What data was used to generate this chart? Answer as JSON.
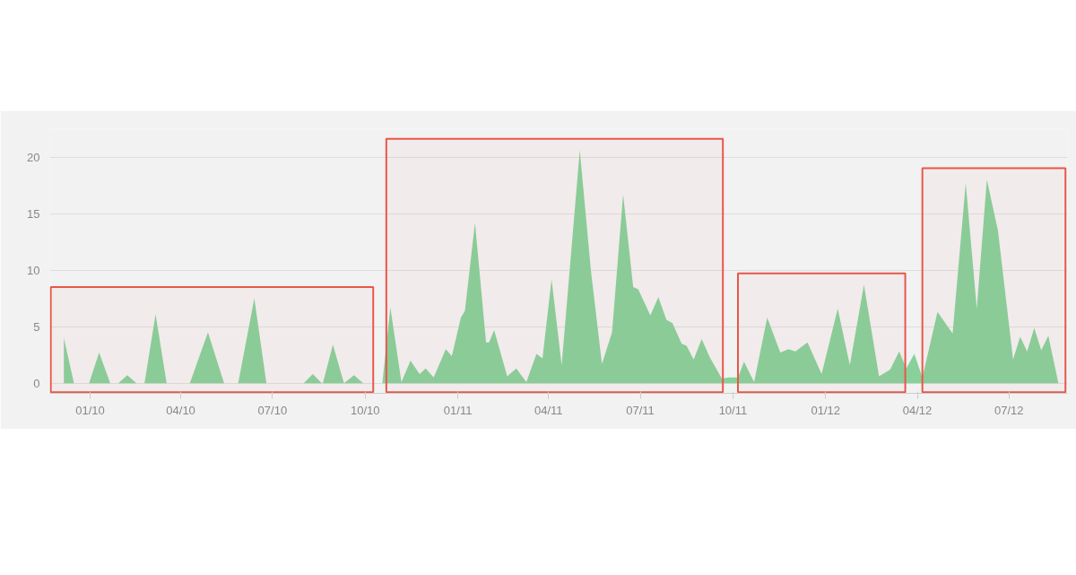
{
  "chart_data": {
    "type": "area",
    "x": [
      "2009-12-06",
      "2009-12-16",
      "2009-12-31",
      "2010-01-10",
      "2010-01-21",
      "2010-01-29",
      "2010-02-07",
      "2010-02-16",
      "2010-02-24",
      "2010-03-07",
      "2010-03-18",
      "2010-04-10",
      "2010-04-28",
      "2010-05-14",
      "2010-05-28",
      "2010-06-13",
      "2010-06-25",
      "2010-08-01",
      "2010-08-10",
      "2010-08-19",
      "2010-08-20",
      "2010-08-30",
      "2010-09-10",
      "2010-09-20",
      "2010-09-29",
      "2010-10-18",
      "2010-10-26",
      "2010-11-06",
      "2010-11-15",
      "2010-11-24",
      "2010-11-30",
      "2010-12-08",
      "2010-12-20",
      "2010-12-26",
      "2011-01-04",
      "2011-01-08",
      "2011-01-18",
      "2011-01-29",
      "2011-02-01",
      "2011-02-06",
      "2011-02-19",
      "2011-02-28",
      "2011-03-10",
      "2011-03-20",
      "2011-03-26",
      "2011-04-04",
      "2011-04-14",
      "2011-05-02",
      "2011-05-13",
      "2011-05-24",
      "2011-06-03",
      "2011-06-14",
      "2011-06-24",
      "2011-06-29",
      "2011-07-11",
      "2011-07-19",
      "2011-07-27",
      "2011-08-02",
      "2011-08-11",
      "2011-08-16",
      "2011-08-23",
      "2011-08-31",
      "2011-09-08",
      "2011-09-20",
      "2011-09-27",
      "2011-10-06",
      "2011-10-12",
      "2011-10-22",
      "2011-11-04",
      "2011-11-17",
      "2011-11-25",
      "2011-12-02",
      "2011-12-14",
      "2011-12-28",
      "2012-01-13",
      "2012-01-25",
      "2012-02-08",
      "2012-02-23",
      "2012-03-05",
      "2012-03-14",
      "2012-03-21",
      "2012-03-29",
      "2012-04-06",
      "2012-04-21",
      "2012-05-06",
      "2012-05-19",
      "2012-05-30",
      "2012-06-09",
      "2012-06-20",
      "2012-07-05",
      "2012-07-12",
      "2012-07-19",
      "2012-07-26",
      "2012-08-02",
      "2012-08-09",
      "2012-08-19"
    ],
    "series": [
      {
        "color": "#88d19b",
        "values": [
          4.0,
          0,
          0,
          2.7,
          0,
          0,
          0.7,
          0,
          0,
          6.1,
          0,
          0,
          4.5,
          0,
          0,
          7.5,
          0,
          0,
          0.8,
          0,
          0,
          3.4,
          0,
          0.7,
          0,
          0,
          6.7,
          0.1,
          2.0,
          0.8,
          1.3,
          0.5,
          3.0,
          2.4,
          5.8,
          6.4,
          14.2,
          3.6,
          3.6,
          4.7,
          0.6,
          1.3,
          0.1,
          2.6,
          2.2,
          9.2,
          1.6,
          20.6,
          10,
          1.7,
          4.5,
          16.7,
          8.5,
          8.3,
          6.0,
          7.6,
          5.6,
          5.3,
          3.5,
          3.3,
          2.1,
          3.9,
          2.3,
          0.4,
          0.5,
          0.5,
          1.9,
          0.1,
          5.8,
          2.7,
          3.0,
          2.8,
          3.6,
          0.8,
          6.6,
          1.6,
          8.7,
          0.6,
          1.2,
          2.8,
          1.3,
          2.6,
          0.5,
          6.3,
          4.4,
          17.7,
          6.6,
          18.0,
          13.5,
          2.1,
          4.1,
          2.8,
          4.9,
          2.9,
          4.2,
          0
        ]
      }
    ],
    "xlim": [
      "2009-11-22",
      "2012-08-28"
    ],
    "xticks": [
      {
        "value": "2010-01-01",
        "label": "01/10"
      },
      {
        "value": "2010-04-01",
        "label": "04/10"
      },
      {
        "value": "2010-07-01",
        "label": "07/10"
      },
      {
        "value": "2010-10-01",
        "label": "10/10"
      },
      {
        "value": "2011-01-01",
        "label": "01/11"
      },
      {
        "value": "2011-04-01",
        "label": "04/11"
      },
      {
        "value": "2011-07-01",
        "label": "07/11"
      },
      {
        "value": "2011-10-01",
        "label": "10/11"
      },
      {
        "value": "2012-01-01",
        "label": "01/12"
      },
      {
        "value": "2012-04-01",
        "label": "04/12"
      },
      {
        "value": "2012-07-01",
        "label": "07/12"
      }
    ],
    "ylim": [
      -0.9,
      22.5
    ],
    "yticks": [
      0,
      5,
      10,
      15,
      20
    ],
    "grid": "y",
    "bands": [
      {
        "axis": "x",
        "from": "2009-11-23",
        "to": "2010-10-09",
        "color": "#e8574a"
      },
      {
        "axis": "x",
        "from": "2010-10-22",
        "to": "2011-09-21",
        "color": "#e8574a"
      },
      {
        "axis": "x",
        "from": "2011-10-06",
        "to": "2012-03-20",
        "color": "#e8574a"
      },
      {
        "axis": "x",
        "from": "2012-04-06",
        "to": "2012-08-26",
        "color": "#e8574a"
      }
    ]
  }
}
